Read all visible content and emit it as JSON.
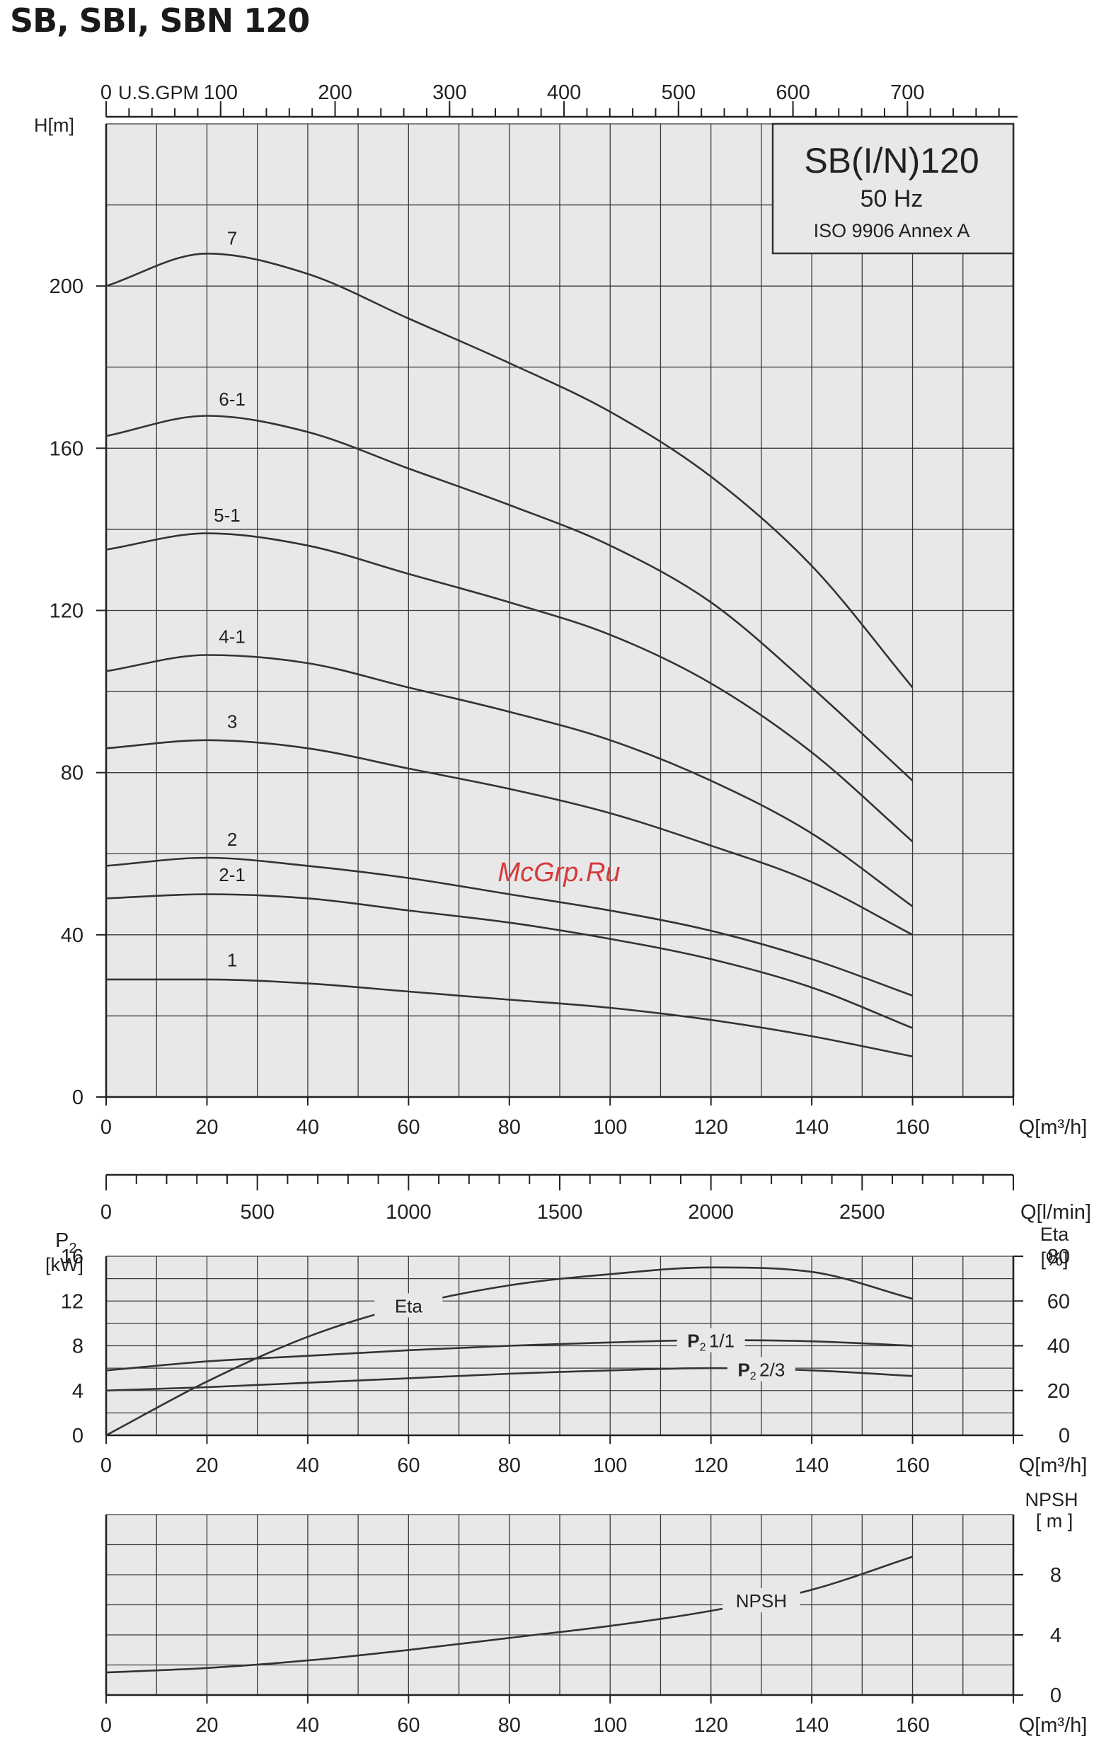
{
  "page": {
    "title": "SB, SBI, SBN 120",
    "watermark": "McGrp.Ru"
  },
  "info_box": {
    "title": "SB(I/N)120",
    "frequency": "50 Hz",
    "standard": "ISO 9906 Annex A"
  },
  "colors": {
    "plot_background": "#e8e8e8",
    "grid": "#3a3a3a",
    "curve": "#333333",
    "watermark": "#d63a3a"
  },
  "chart_data": [
    {
      "type": "line",
      "id": "head",
      "title": "",
      "xlabel": "Q[m³/h]",
      "ylabel": "H[m]",
      "xlim": [
        0,
        180
      ],
      "ylim": [
        0,
        240
      ],
      "x_ticks": [
        0,
        20,
        40,
        60,
        80,
        100,
        120,
        140,
        160
      ],
      "y_ticks": [
        0,
        40,
        80,
        120,
        160,
        200
      ],
      "grid": true,
      "secondary_x_top": {
        "label": "U.S.GPM",
        "ticks": [
          0,
          100,
          200,
          300,
          400,
          500,
          600,
          700
        ],
        "factor": 4.4029
      },
      "secondary_x_bottom": {
        "label": "Q[l/min]",
        "ticks": [
          0,
          500,
          1000,
          1500,
          2000,
          2500
        ],
        "factor": 16.667
      },
      "x": [
        0,
        20,
        40,
        60,
        80,
        100,
        120,
        140,
        160
      ],
      "series": [
        {
          "name": "7",
          "label_x": 25,
          "values": [
            200,
            208,
            203,
            192,
            181,
            169,
            153,
            131,
            101
          ]
        },
        {
          "name": "6-1",
          "label_x": 25,
          "values": [
            163,
            168,
            164,
            155,
            146,
            136,
            122,
            101,
            78
          ]
        },
        {
          "name": "5-1",
          "label_x": 24,
          "values": [
            135,
            139,
            136,
            129,
            122,
            114,
            102,
            85,
            63
          ]
        },
        {
          "name": "4-1",
          "label_x": 25,
          "values": [
            105,
            109,
            107,
            101,
            95,
            88,
            78,
            65,
            47
          ]
        },
        {
          "name": "3",
          "label_x": 25,
          "values": [
            86,
            88,
            86,
            81,
            76,
            70,
            62,
            53,
            40
          ]
        },
        {
          "name": "2",
          "label_x": 25,
          "values": [
            57,
            59,
            57,
            54,
            50,
            46,
            41,
            34,
            25
          ]
        },
        {
          "name": "2-1",
          "label_x": 25,
          "values": [
            49,
            50,
            49,
            46,
            43,
            39,
            34,
            27,
            17
          ]
        },
        {
          "name": "1",
          "label_x": 25,
          "values": [
            29,
            29,
            28,
            26,
            24,
            22,
            19,
            15,
            10
          ]
        }
      ]
    },
    {
      "type": "line",
      "id": "power_eta",
      "title": "",
      "xlabel": "Q[m³/h]",
      "ylabel": "P2",
      "ylabel_unit": "[kW]",
      "y2label": "Eta",
      "y2label_unit": "[%]",
      "xlim": [
        0,
        180
      ],
      "ylim": [
        0,
        16
      ],
      "y2lim": [
        0,
        80
      ],
      "x_ticks": [
        0,
        20,
        40,
        60,
        80,
        100,
        120,
        140,
        160
      ],
      "y_ticks": [
        0,
        4,
        8,
        12,
        16
      ],
      "y2_ticks": [
        0,
        20,
        40,
        60,
        80
      ],
      "grid": true,
      "x": [
        0,
        20,
        40,
        60,
        80,
        100,
        120,
        140,
        160
      ],
      "series": [
        {
          "name": "Eta",
          "label_prefix": "",
          "label_text": "Eta",
          "axis": "right",
          "label_x": 60,
          "values": [
            0,
            24,
            44,
            58,
            67,
            72,
            75,
            73,
            61
          ]
        },
        {
          "name": "P2 1/1",
          "label_prefix": "P",
          "label_text": "1/1",
          "axis": "left",
          "label_x": 120,
          "values": [
            5.8,
            6.6,
            7.1,
            7.6,
            8.0,
            8.3,
            8.5,
            8.4,
            8.0
          ]
        },
        {
          "name": "P2 2/3",
          "label_prefix": "P",
          "label_text": "2/3",
          "axis": "left",
          "label_x": 130,
          "values": [
            4.0,
            4.3,
            4.7,
            5.1,
            5.5,
            5.8,
            6.0,
            5.8,
            5.3
          ]
        }
      ]
    },
    {
      "type": "line",
      "id": "npsh",
      "title": "",
      "xlabel": "Q[m³/h]",
      "y2label": "NPSH",
      "y2label_unit": "[ m ]",
      "xlim": [
        0,
        180
      ],
      "y2lim": [
        0,
        12
      ],
      "x_ticks": [
        0,
        20,
        40,
        60,
        80,
        100,
        120,
        140,
        160
      ],
      "y2_ticks": [
        0,
        4,
        8
      ],
      "grid": true,
      "x": [
        0,
        20,
        40,
        60,
        80,
        100,
        120,
        140,
        160
      ],
      "series": [
        {
          "name": "NPSH",
          "label_text": "NPSH",
          "axis": "right",
          "label_x": 130,
          "values": [
            1.5,
            1.8,
            2.3,
            3.0,
            3.8,
            4.6,
            5.6,
            7.0,
            9.2
          ]
        }
      ]
    }
  ]
}
